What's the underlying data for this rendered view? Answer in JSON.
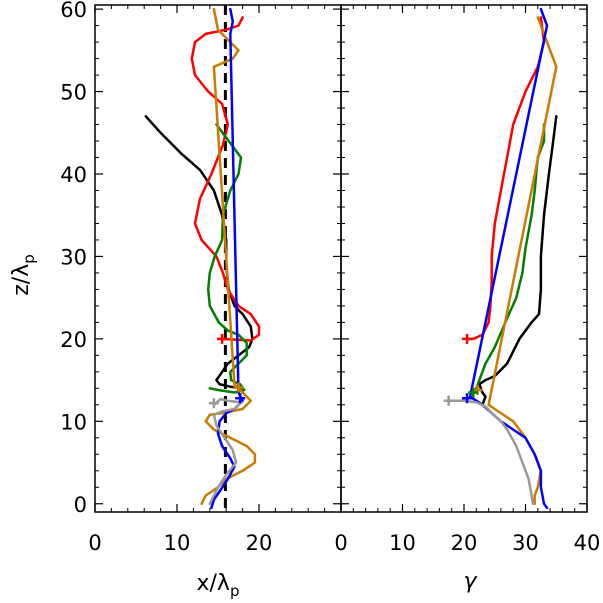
{
  "chart_data": [
    {
      "type": "line",
      "panel": "left",
      "xlabel": "x/λ",
      "xlabel_subscript": "p",
      "ylabel": "z/λ",
      "ylabel_subscript": "p",
      "xlim": [
        0,
        30
      ],
      "ylim": [
        -1,
        60.5
      ],
      "x_ticks": [
        "0",
        "10",
        "20"
      ],
      "y_ticks": [
        "0",
        "10",
        "20",
        "30",
        "40",
        "50",
        "60"
      ],
      "reference_line": {
        "x": 15.9,
        "style": "dashed",
        "color": "#000000"
      },
      "series": [
        {
          "color": "#000000",
          "points": [
            [
              6.2,
              47
            ],
            [
              8,
              45
            ],
            [
              10.5,
              42.5
            ],
            [
              12.8,
              40.5
            ],
            [
              14.5,
              38
            ],
            [
              15.5,
              35
            ],
            [
              16,
              32
            ],
            [
              16,
              29
            ],
            [
              16.3,
              26
            ],
            [
              17,
              24
            ],
            [
              18,
              23
            ],
            [
              19,
              21.5
            ],
            [
              19.2,
              20
            ],
            [
              18.8,
              19
            ],
            [
              17.5,
              18
            ],
            [
              16.2,
              17
            ],
            [
              15.5,
              16
            ],
            [
              14.8,
              15
            ],
            [
              15.2,
              14.5
            ],
            [
              16.5,
              14.2
            ],
            [
              18,
              14
            ]
          ]
        },
        {
          "color": "#ff0000",
          "points": [
            [
              18,
              59
            ],
            [
              17.5,
              58
            ],
            [
              16,
              57.5
            ],
            [
              13.5,
              57
            ],
            [
              12.2,
              56
            ],
            [
              11.8,
              54
            ],
            [
              12.2,
              52
            ],
            [
              13.8,
              50
            ],
            [
              15.5,
              48.5
            ],
            [
              16.2,
              46
            ],
            [
              15.6,
              43.5
            ],
            [
              14.2,
              40
            ],
            [
              12.8,
              37
            ],
            [
              12.2,
              34
            ],
            [
              13,
              32
            ],
            [
              14.8,
              30
            ],
            [
              15.6,
              28
            ],
            [
              16.2,
              26
            ],
            [
              17.5,
              24
            ],
            [
              19,
              23
            ],
            [
              20,
              21.5
            ],
            [
              20,
              20.5
            ],
            [
              19,
              19.8
            ],
            [
              15.5,
              20
            ]
          ]
        },
        {
          "color": "#008000",
          "points": [
            [
              14.8,
              46
            ],
            [
              16.3,
              44
            ],
            [
              17.8,
              42
            ],
            [
              17.5,
              40
            ],
            [
              16.5,
              38
            ],
            [
              15.6,
              35
            ],
            [
              15.5,
              32
            ],
            [
              14.6,
              30
            ],
            [
              14,
              28
            ],
            [
              13.8,
              26
            ],
            [
              14,
              24
            ],
            [
              15.1,
              22
            ],
            [
              16.2,
              21
            ],
            [
              17.5,
              20.5
            ],
            [
              18.5,
              19.5
            ],
            [
              18.5,
              18
            ],
            [
              17.5,
              17
            ],
            [
              16.5,
              16
            ],
            [
              16.6,
              15
            ],
            [
              17.7,
              14.5
            ],
            [
              18.2,
              13.8
            ],
            [
              17,
              13.5
            ],
            [
              15,
              13.8
            ],
            [
              14,
              14
            ]
          ]
        },
        {
          "color": "#cc7a00",
          "points": [
            [
              14.5,
              60
            ],
            [
              15,
              57.5
            ],
            [
              16.5,
              56
            ],
            [
              17.5,
              55
            ],
            [
              16.8,
              54
            ],
            [
              14.5,
              53
            ],
            [
              17,
              14.5
            ],
            [
              18,
              13.5
            ],
            [
              19,
              12.5
            ],
            [
              18,
              11.5
            ],
            [
              15.5,
              11
            ],
            [
              14,
              10.8
            ],
            [
              13.5,
              10
            ],
            [
              14.5,
              9
            ],
            [
              16.5,
              8
            ],
            [
              18.5,
              7
            ],
            [
              19.5,
              6
            ],
            [
              19.5,
              5
            ],
            [
              18,
              4
            ],
            [
              16,
              3
            ],
            [
              15,
              2
            ],
            [
              13.5,
              1
            ],
            [
              13,
              0
            ]
          ]
        },
        {
          "color": "#0000ff",
          "points": [
            [
              16.5,
              60
            ],
            [
              16.8,
              58.5
            ],
            [
              16.5,
              57
            ],
            [
              17.5,
              13.5
            ],
            [
              18,
              12.5
            ],
            [
              17,
              11.5
            ],
            [
              16,
              11
            ],
            [
              15.2,
              10
            ],
            [
              15,
              8.5
            ],
            [
              15.5,
              7
            ],
            [
              16.5,
              5.5
            ],
            [
              17,
              4.5
            ],
            [
              16.2,
              3
            ],
            [
              15.2,
              1.5
            ],
            [
              14.5,
              0.5
            ],
            [
              14.2,
              -0.5
            ]
          ]
        },
        {
          "color": "#999999",
          "points": [
            [
              14.5,
              12
            ],
            [
              15.3,
              12.7
            ],
            [
              16.2,
              12.5
            ],
            [
              17.8,
              12.3
            ],
            [
              17,
              11.5
            ],
            [
              15.5,
              11.2
            ],
            [
              14.5,
              10.8
            ],
            [
              14.8,
              9.5
            ],
            [
              15.8,
              8
            ],
            [
              16.8,
              6.5
            ],
            [
              17.2,
              5
            ],
            [
              16,
              3.5
            ],
            [
              15,
              2
            ],
            [
              14.5,
              1
            ],
            [
              14,
              0
            ]
          ]
        }
      ],
      "markers": [
        {
          "color": "#ff0000",
          "x": 15.5,
          "y": 20,
          "symbol": "+"
        },
        {
          "color": "#cc7a00",
          "x": 17.5,
          "y": 14.1,
          "symbol": "+"
        },
        {
          "color": "#0000ff",
          "x": 17.7,
          "y": 12.8,
          "symbol": "+"
        },
        {
          "color": "#999999",
          "x": 14.5,
          "y": 12.2,
          "symbol": "+"
        }
      ]
    },
    {
      "type": "line",
      "panel": "right",
      "xlabel": "γ",
      "xlim": [
        0,
        40
      ],
      "ylim": [
        -1,
        60.5
      ],
      "x_ticks": [
        "0",
        "10",
        "20",
        "30",
        "40"
      ],
      "series": [
        {
          "color": "#000000",
          "points": [
            [
              35,
              47
            ],
            [
              34.5,
              44
            ],
            [
              33.8,
              40
            ],
            [
              33,
              35
            ],
            [
              32.5,
              30
            ],
            [
              32.5,
              26
            ],
            [
              32.2,
              23
            ],
            [
              31,
              22
            ],
            [
              29,
              20
            ],
            [
              27,
              17
            ],
            [
              25,
              15.5
            ],
            [
              23.5,
              15
            ],
            [
              22.5,
              14.5
            ],
            [
              23,
              13.5
            ],
            [
              23.5,
              13
            ],
            [
              23,
              12
            ]
          ]
        },
        {
          "color": "#ff0000",
          "points": [
            [
              32.5,
              59
            ],
            [
              33,
              56
            ],
            [
              32,
              53
            ],
            [
              30,
              50
            ],
            [
              28,
              46
            ],
            [
              27,
              42
            ],
            [
              26,
              38
            ],
            [
              25,
              34
            ],
            [
              24.5,
              30
            ],
            [
              24.5,
              27
            ],
            [
              24.3,
              24
            ],
            [
              24,
              22
            ],
            [
              23,
              20.5
            ],
            [
              21.5,
              20
            ],
            [
              20.5,
              20
            ]
          ]
        },
        {
          "color": "#008000",
          "points": [
            [
              33,
              46
            ],
            [
              33,
              44
            ],
            [
              32,
              42
            ],
            [
              31.5,
              38
            ],
            [
              31,
              35
            ],
            [
              30,
              31
            ],
            [
              29.5,
              28
            ],
            [
              28.5,
              25
            ],
            [
              27,
              22.5
            ],
            [
              25,
              19
            ],
            [
              23.5,
              17
            ],
            [
              22.5,
              15
            ],
            [
              22,
              14
            ],
            [
              22,
              13.5
            ]
          ]
        },
        {
          "color": "#cc7a00",
          "points": [
            [
              32,
              59
            ],
            [
              32.5,
              58
            ],
            [
              33,
              57
            ],
            [
              33.5,
              56
            ],
            [
              34,
              55
            ],
            [
              34.5,
              54
            ],
            [
              35,
              53
            ],
            [
              24,
              12
            ],
            [
              25,
              11.5
            ],
            [
              26,
              11
            ],
            [
              28,
              10
            ],
            [
              30,
              8
            ],
            [
              31.5,
              6
            ],
            [
              32,
              5
            ],
            [
              32.5,
              4
            ],
            [
              32,
              2
            ],
            [
              31.5,
              1
            ],
            [
              31.5,
              0
            ]
          ]
        },
        {
          "color": "#0000ff",
          "points": [
            [
              32.5,
              60
            ],
            [
              33,
              59
            ],
            [
              33.5,
              58
            ],
            [
              21,
              13
            ],
            [
              23,
              12
            ],
            [
              24.5,
              11
            ],
            [
              26,
              10
            ],
            [
              28,
              9
            ],
            [
              30,
              8
            ],
            [
              31.5,
              6
            ],
            [
              32.5,
              4
            ],
            [
              32.5,
              2
            ],
            [
              33,
              0
            ],
            [
              33.5,
              -0.5
            ]
          ]
        },
        {
          "color": "#999999",
          "points": [
            [
              17.5,
              12.5
            ],
            [
              20,
              12.5
            ],
            [
              22,
              12.3
            ],
            [
              23.5,
              11.8
            ],
            [
              24.5,
              11
            ],
            [
              26,
              10
            ],
            [
              27,
              9
            ],
            [
              28.5,
              7
            ],
            [
              29.5,
              5
            ],
            [
              30.5,
              3
            ],
            [
              31,
              1
            ],
            [
              31.2,
              0
            ]
          ]
        }
      ],
      "markers": [
        {
          "color": "#ff0000",
          "x": 20.5,
          "y": 20,
          "symbol": "+"
        },
        {
          "color": "#cc7a00",
          "x": 22.2,
          "y": 13.8,
          "symbol": "+"
        },
        {
          "color": "#008000",
          "x": 21.5,
          "y": 13.5,
          "symbol": "+"
        },
        {
          "color": "#0000ff",
          "x": 20.5,
          "y": 12.8,
          "symbol": "+"
        },
        {
          "color": "#999999",
          "x": 17.5,
          "y": 12.5,
          "symbol": "+"
        }
      ]
    }
  ]
}
